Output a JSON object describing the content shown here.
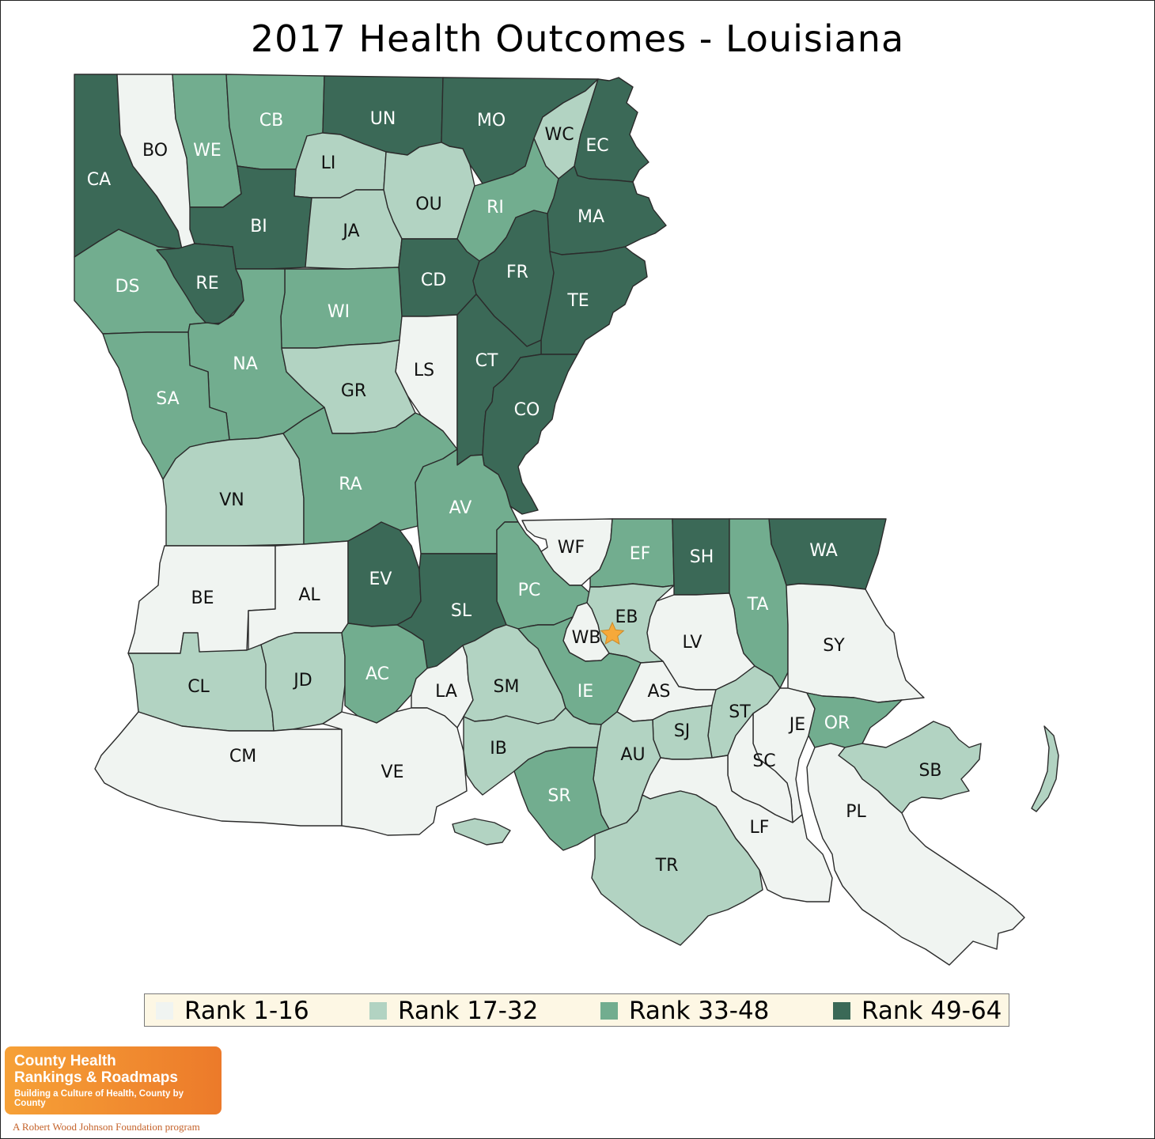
{
  "title": "2017 Health Outcomes - Louisiana",
  "colors": {
    "rank_1_16": "#f0f4f1",
    "rank_17_32": "#b2d3c2",
    "rank_33_48": "#72ad8f",
    "rank_49_64": "#3b6957",
    "star": "#f6a93a"
  },
  "legend": [
    {
      "label": "Rank 1-16",
      "group": 1
    },
    {
      "label": "Rank 17-32",
      "group": 2
    },
    {
      "label": "Rank 33-48",
      "group": 3
    },
    {
      "label": "Rank 49-64",
      "group": 4
    }
  ],
  "parishes": [
    {
      "label": "CA",
      "group": 4
    },
    {
      "label": "BO",
      "group": 1
    },
    {
      "label": "WE",
      "group": 3
    },
    {
      "label": "CB",
      "group": 3
    },
    {
      "label": "UN",
      "group": 4
    },
    {
      "label": "MO",
      "group": 4
    },
    {
      "label": "WC",
      "group": 2
    },
    {
      "label": "EC",
      "group": 4
    },
    {
      "label": "LI",
      "group": 2
    },
    {
      "label": "OU",
      "group": 2
    },
    {
      "label": "RI",
      "group": 3
    },
    {
      "label": "MA",
      "group": 4
    },
    {
      "label": "BI",
      "group": 4
    },
    {
      "label": "JA",
      "group": 2
    },
    {
      "label": "DS",
      "group": 3
    },
    {
      "label": "RE",
      "group": 4
    },
    {
      "label": "CD",
      "group": 4
    },
    {
      "label": "FR",
      "group": 4
    },
    {
      "label": "TE",
      "group": 4
    },
    {
      "label": "WI",
      "group": 3
    },
    {
      "label": "NA",
      "group": 3
    },
    {
      "label": "LS",
      "group": 1
    },
    {
      "label": "CT",
      "group": 4
    },
    {
      "label": "SA",
      "group": 3
    },
    {
      "label": "GR",
      "group": 2
    },
    {
      "label": "CO",
      "group": 4
    },
    {
      "label": "VN",
      "group": 2
    },
    {
      "label": "RA",
      "group": 3
    },
    {
      "label": "AV",
      "group": 3
    },
    {
      "label": "WF",
      "group": 1
    },
    {
      "label": "EF",
      "group": 3
    },
    {
      "label": "SH",
      "group": 4
    },
    {
      "label": "WA",
      "group": 4
    },
    {
      "label": "BE",
      "group": 1
    },
    {
      "label": "AL",
      "group": 1
    },
    {
      "label": "EV",
      "group": 4
    },
    {
      "label": "PC",
      "group": 3
    },
    {
      "label": "EB",
      "group": 2
    },
    {
      "label": "TA",
      "group": 3
    },
    {
      "label": "SL",
      "group": 4
    },
    {
      "label": "WB",
      "group": 1
    },
    {
      "label": "LV",
      "group": 1
    },
    {
      "label": "SY",
      "group": 1
    },
    {
      "label": "CL",
      "group": 2
    },
    {
      "label": "JD",
      "group": 2
    },
    {
      "label": "AC",
      "group": 3
    },
    {
      "label": "LA",
      "group": 1
    },
    {
      "label": "SM",
      "group": 2
    },
    {
      "label": "IE",
      "group": 3
    },
    {
      "label": "AS",
      "group": 1
    },
    {
      "label": "ST",
      "group": 2
    },
    {
      "label": "JE",
      "group": 1
    },
    {
      "label": "OR",
      "group": 3
    },
    {
      "label": "SJ",
      "group": 2
    },
    {
      "label": "CM",
      "group": 1
    },
    {
      "label": "VE",
      "group": 1
    },
    {
      "label": "IB",
      "group": 2
    },
    {
      "label": "AU",
      "group": 2
    },
    {
      "label": "SC",
      "group": 1
    },
    {
      "label": "SB",
      "group": 2
    },
    {
      "label": "SR",
      "group": 3
    },
    {
      "label": "LF",
      "group": 1
    },
    {
      "label": "PL",
      "group": 1
    },
    {
      "label": "TR",
      "group": 2
    }
  ],
  "logo": {
    "line1": "County Health",
    "line2": "Rankings & Roadmaps",
    "tagline": "Building a Culture of Health, County by County",
    "foundation": "A Robert Wood Johnson Foundation program"
  }
}
